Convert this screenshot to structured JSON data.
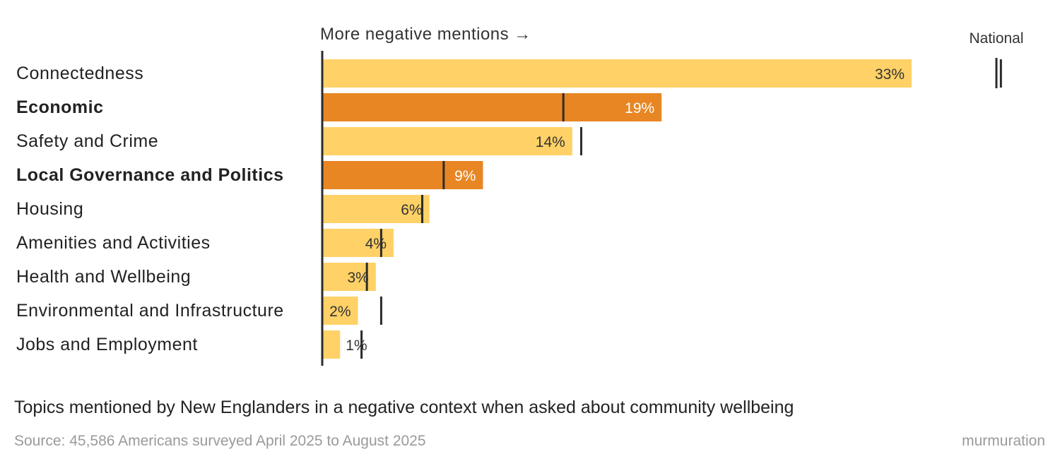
{
  "chart_data": {
    "type": "bar",
    "orientation": "horizontal",
    "axis_note": "More negative mentions →",
    "legend_label": "National",
    "title": "Topics mentioned by New Englanders in a negative context when asked about community wellbeing",
    "source": "Source: 45,586 Americans surveyed April 2025 to August 2025",
    "brand": "murmuration",
    "xlim": [
      0,
      33
    ],
    "colors": {
      "highlight": "#E88623",
      "default": "#FFD166",
      "marker": "#2b2b2b",
      "light_text": "#ffffff",
      "dark_text": "#333333"
    },
    "categories": [
      "Connectedness",
      "Economic",
      "Safety and Crime",
      "Local Governance and Politics",
      "Housing",
      "Amenities and Activities",
      "Health and Wellbeing",
      "Environmental and Infrastructure",
      "Jobs and Employment"
    ],
    "values": [
      33,
      19,
      14,
      9,
      6,
      4,
      3,
      2,
      1
    ],
    "value_labels": [
      "33%",
      "19%",
      "14%",
      "9%",
      "6%",
      "4%",
      "3%",
      "2%",
      "1%"
    ],
    "national": [
      38,
      13.5,
      14.5,
      6.8,
      5.6,
      3.3,
      2.5,
      3.3,
      2.2
    ],
    "highlighted": [
      false,
      true,
      false,
      true,
      false,
      false,
      false,
      false,
      false
    ]
  }
}
